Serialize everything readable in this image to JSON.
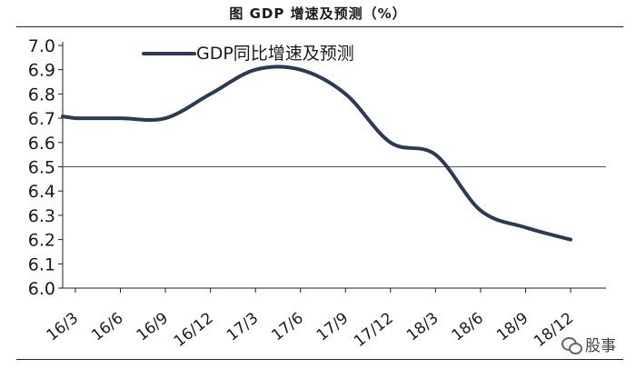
{
  "title": "图    GDP 增速及预测（%）",
  "watermark": {
    "icon": "wechat-icon",
    "text": "股事"
  },
  "chart_data": {
    "type": "line",
    "title": "图 GDP 增速及预测（%）",
    "xlabel": "",
    "ylabel": "",
    "categories": [
      "16/3",
      "16/6",
      "16/9",
      "16/12",
      "17/3",
      "17/6",
      "17/9",
      "17/12",
      "18/3",
      "18/6",
      "18/9",
      "18/12"
    ],
    "series": [
      {
        "name": "GDP同比增速及预测",
        "color": "#2b3a55",
        "values": [
          6.7,
          6.7,
          6.7,
          6.8,
          6.9,
          6.9,
          6.8,
          6.6,
          6.55,
          6.32,
          6.25,
          6.2
        ]
      }
    ],
    "reference_line": 6.5,
    "ylim": [
      6.0,
      7.0
    ],
    "yticks": [
      "6.0",
      "6.1",
      "6.2",
      "6.3",
      "6.4",
      "6.5",
      "6.6",
      "6.7",
      "6.8",
      "6.9",
      "7.0"
    ],
    "legend_position": "top-left",
    "grid": false
  }
}
